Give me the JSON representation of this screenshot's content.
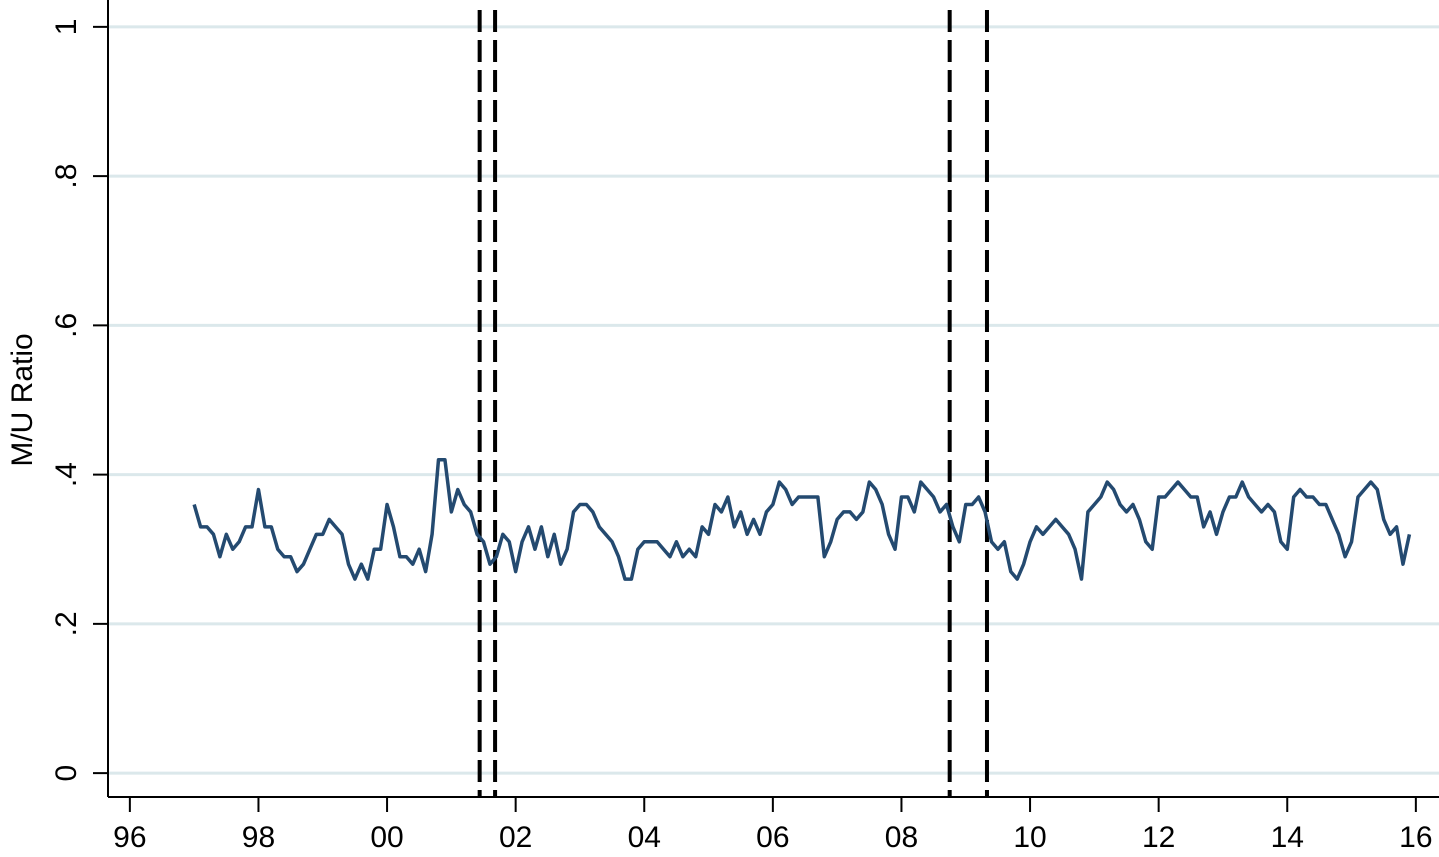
{
  "chart_data": {
    "type": "line",
    "y_label": "M/U Ratio",
    "color": "#244a70",
    "grid": true,
    "grid_color": "#dbe8eb",
    "xlim": [
      1995.66,
      2016.36
    ],
    "ylim": [
      -0.032,
      1.036
    ],
    "xticks": [
      {
        "value": 1996,
        "label": "96"
      },
      {
        "value": 1998,
        "label": "98"
      },
      {
        "value": 2000,
        "label": "00"
      },
      {
        "value": 2002,
        "label": "02"
      },
      {
        "value": 2004,
        "label": "04"
      },
      {
        "value": 2006,
        "label": "06"
      },
      {
        "value": 2008,
        "label": "08"
      },
      {
        "value": 2010,
        "label": "10"
      },
      {
        "value": 2012,
        "label": "12"
      },
      {
        "value": 2014,
        "label": "14"
      },
      {
        "value": 2016,
        "label": "16"
      }
    ],
    "yticks": [
      0,
      {
        "value": 0.2,
        "label": ".2"
      },
      {
        "value": 0.4,
        "label": ".4"
      },
      {
        "value": 0.6,
        "label": ".6"
      },
      {
        "value": 0.8,
        "label": ".8"
      },
      1
    ],
    "vlines": [
      2001.44,
      2001.68,
      2008.75,
      2009.33
    ],
    "vline_color": "#000000",
    "x": [
      1997.0,
      1997.1,
      1997.2,
      1997.3,
      1997.4,
      1997.5,
      1997.6,
      1997.7,
      1997.8,
      1997.9,
      1998.0,
      1998.1,
      1998.2,
      1998.3,
      1998.4,
      1998.5,
      1998.6,
      1998.7,
      1998.8,
      1998.9,
      1999.0,
      1999.1,
      1999.2,
      1999.3,
      1999.4,
      1999.5,
      1999.6,
      1999.7,
      1999.8,
      1999.9,
      2000.0,
      2000.1,
      2000.2,
      2000.3,
      2000.4,
      2000.5,
      2000.6,
      2000.7,
      2000.8,
      2000.9,
      2001.0,
      2001.1,
      2001.2,
      2001.3,
      2001.4,
      2001.5,
      2001.6,
      2001.7,
      2001.8,
      2001.9,
      2002.0,
      2002.1,
      2002.2,
      2002.3,
      2002.4,
      2002.5,
      2002.6,
      2002.7,
      2002.8,
      2002.9,
      2003.0,
      2003.1,
      2003.2,
      2003.3,
      2003.4,
      2003.5,
      2003.6,
      2003.7,
      2003.8,
      2003.9,
      2004.0,
      2004.1,
      2004.2,
      2004.3,
      2004.4,
      2004.5,
      2004.6,
      2004.7,
      2004.8,
      2004.9,
      2005.0,
      2005.1,
      2005.2,
      2005.3,
      2005.4,
      2005.5,
      2005.6,
      2005.7,
      2005.8,
      2005.9,
      2006.0,
      2006.1,
      2006.2,
      2006.3,
      2006.4,
      2006.5,
      2006.6,
      2006.7,
      2006.8,
      2006.9,
      2007.0,
      2007.1,
      2007.2,
      2007.3,
      2007.4,
      2007.5,
      2007.6,
      2007.7,
      2007.8,
      2007.9,
      2008.0,
      2008.1,
      2008.2,
      2008.3,
      2008.4,
      2008.5,
      2008.6,
      2008.7,
      2008.8,
      2008.9,
      2009.0,
      2009.1,
      2009.2,
      2009.3,
      2009.4,
      2009.5,
      2009.6,
      2009.7,
      2009.8,
      2009.9,
      2010.0,
      2010.1,
      2010.2,
      2010.3,
      2010.4,
      2010.5,
      2010.6,
      2010.7,
      2010.8,
      2010.9,
      2011.0,
      2011.1,
      2011.2,
      2011.3,
      2011.4,
      2011.5,
      2011.6,
      2011.7,
      2011.8,
      2011.9,
      2012.0,
      2012.1,
      2012.2,
      2012.3,
      2012.4,
      2012.5,
      2012.6,
      2012.7,
      2012.8,
      2012.9,
      2013.0,
      2013.1,
      2013.2,
      2013.3,
      2013.4,
      2013.5,
      2013.6,
      2013.7,
      2013.8,
      2013.9,
      2014.0,
      2014.1,
      2014.2,
      2014.3,
      2014.4,
      2014.5,
      2014.6,
      2014.7,
      2014.8,
      2014.9,
      2015.0,
      2015.1,
      2015.2,
      2015.3,
      2015.4,
      2015.5,
      2015.6,
      2015.7,
      2015.8,
      2015.9
    ],
    "values": [
      0.36,
      0.33,
      0.33,
      0.32,
      0.29,
      0.32,
      0.3,
      0.31,
      0.33,
      0.33,
      0.38,
      0.33,
      0.33,
      0.3,
      0.29,
      0.29,
      0.27,
      0.28,
      0.3,
      0.32,
      0.32,
      0.34,
      0.33,
      0.32,
      0.28,
      0.26,
      0.28,
      0.26,
      0.3,
      0.3,
      0.36,
      0.33,
      0.29,
      0.29,
      0.28,
      0.3,
      0.27,
      0.32,
      0.42,
      0.42,
      0.35,
      0.38,
      0.36,
      0.35,
      0.32,
      0.31,
      0.28,
      0.29,
      0.32,
      0.31,
      0.27,
      0.31,
      0.33,
      0.3,
      0.33,
      0.29,
      0.32,
      0.28,
      0.3,
      0.35,
      0.36,
      0.36,
      0.35,
      0.33,
      0.32,
      0.31,
      0.29,
      0.26,
      0.26,
      0.3,
      0.31,
      0.31,
      0.31,
      0.3,
      0.29,
      0.31,
      0.29,
      0.3,
      0.29,
      0.33,
      0.32,
      0.36,
      0.35,
      0.37,
      0.33,
      0.35,
      0.32,
      0.34,
      0.32,
      0.35,
      0.36,
      0.39,
      0.38,
      0.36,
      0.37,
      0.37,
      0.37,
      0.37,
      0.29,
      0.31,
      0.34,
      0.35,
      0.35,
      0.34,
      0.35,
      0.39,
      0.38,
      0.36,
      0.32,
      0.3,
      0.37,
      0.37,
      0.35,
      0.39,
      0.38,
      0.37,
      0.35,
      0.36,
      0.33,
      0.31,
      0.36,
      0.36,
      0.37,
      0.35,
      0.31,
      0.3,
      0.31,
      0.27,
      0.26,
      0.28,
      0.31,
      0.33,
      0.32,
      0.33,
      0.34,
      0.33,
      0.32,
      0.3,
      0.26,
      0.35,
      0.36,
      0.37,
      0.39,
      0.38,
      0.36,
      0.35,
      0.36,
      0.34,
      0.31,
      0.3,
      0.37,
      0.37,
      0.38,
      0.39,
      0.38,
      0.37,
      0.37,
      0.33,
      0.35,
      0.32,
      0.35,
      0.37,
      0.37,
      0.39,
      0.37,
      0.36,
      0.35,
      0.36,
      0.35,
      0.31,
      0.3,
      0.37,
      0.38,
      0.37,
      0.37,
      0.36,
      0.36,
      0.34,
      0.32,
      0.29,
      0.31,
      0.37,
      0.38,
      0.39,
      0.38,
      0.34,
      0.32,
      0.33,
      0.28,
      0.32
    ]
  }
}
